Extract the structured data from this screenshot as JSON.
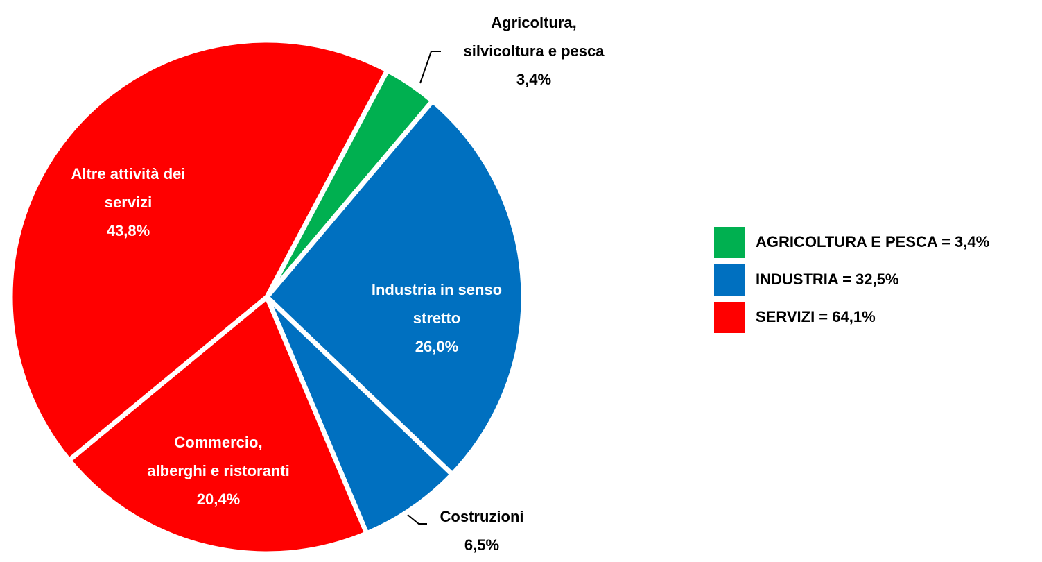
{
  "chart_data": {
    "type": "pie",
    "categories": [
      [
        "Agricoltura,",
        "silvicoltura e pesca"
      ],
      [
        "Industria in senso",
        "stretto"
      ],
      [
        "Costruzioni"
      ],
      [
        "Commercio,",
        "alberghi e ristoranti"
      ],
      [
        "Altre attività dei",
        "servizi"
      ]
    ],
    "values": [
      3.4,
      26.0,
      6.5,
      20.4,
      43.8
    ],
    "value_labels": [
      "3,4%",
      "26,0%",
      "6,5%",
      "20,4%",
      "43,8%"
    ],
    "colors": [
      "#00b050",
      "#0070c0",
      "#0070c0",
      "#ff0000",
      "#ff0000"
    ],
    "legend": [
      {
        "label": "AGRICOLTURA E PESCA = 3,4%",
        "color": "#00b050"
      },
      {
        "label": "INDUSTRIA = 32,5%",
        "color": "#0070c0"
      },
      {
        "label": "SERVIZI = 64,1%",
        "color": "#ff0000"
      }
    ]
  }
}
